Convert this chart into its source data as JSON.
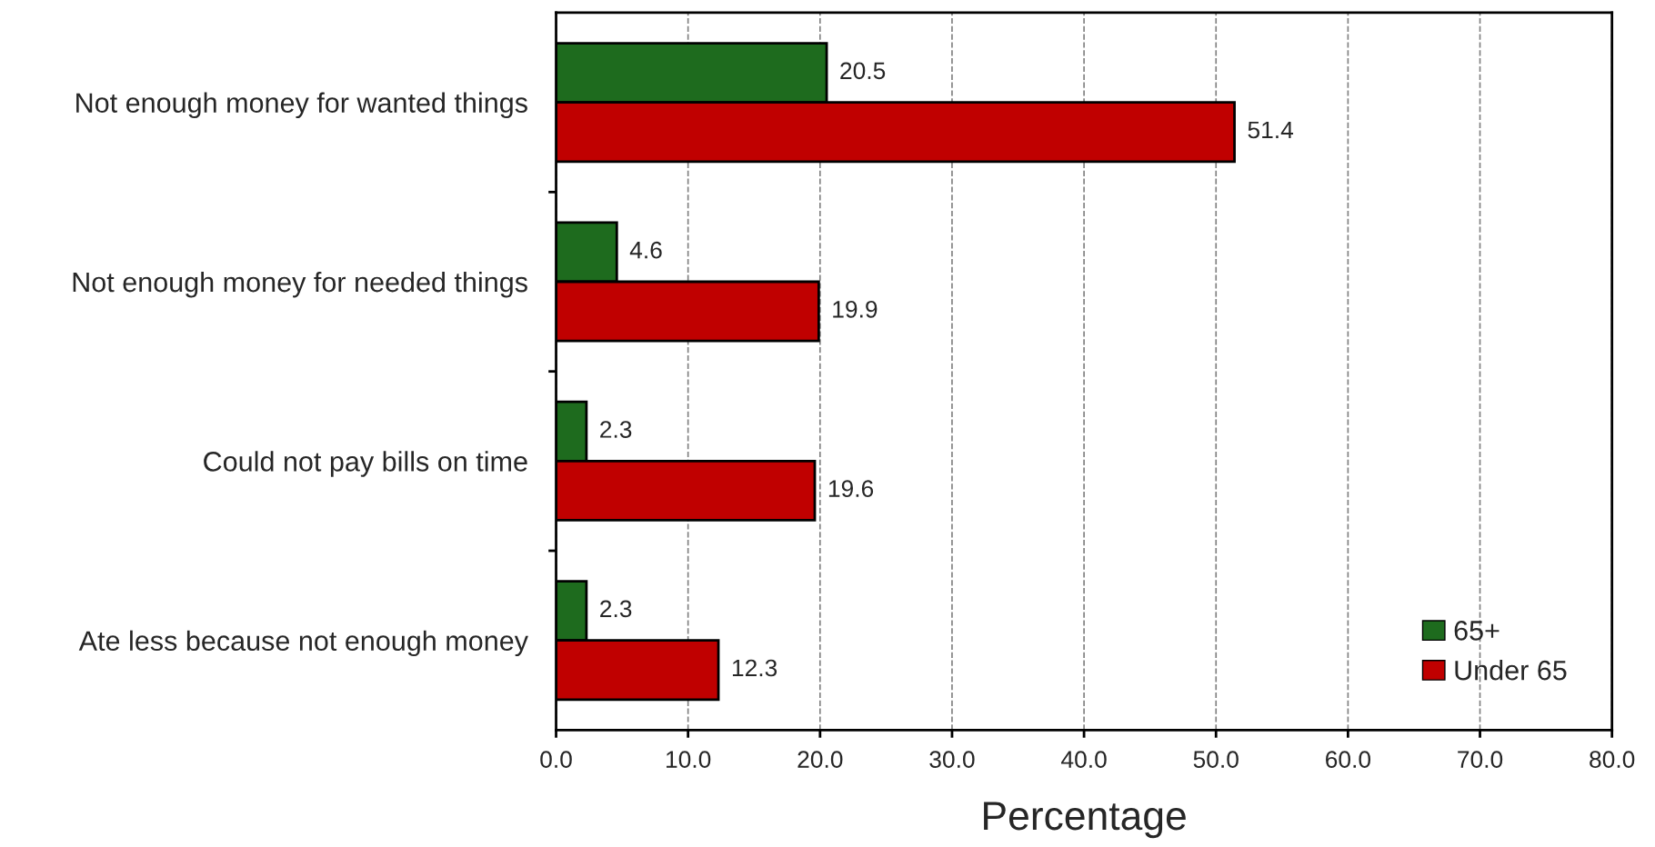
{
  "chart_data": {
    "type": "bar",
    "orientation": "horizontal",
    "xlabel": "Percentage",
    "categories": [
      "Not enough money for wanted things",
      "Not enough money for needed things",
      "Could not pay bills on time",
      "Ate less because not enough money"
    ],
    "series": [
      {
        "name": "65+",
        "color": "#1e6b1e",
        "values": [
          20.5,
          4.6,
          2.3,
          2.3
        ]
      },
      {
        "name": "Under 65",
        "color": "#c00000",
        "values": [
          51.4,
          19.9,
          19.6,
          12.3
        ]
      }
    ],
    "xlim": [
      0,
      80
    ],
    "xticks": [
      {
        "value": 0,
        "label": "0.0"
      },
      {
        "value": 10,
        "label": "10.0"
      },
      {
        "value": 20,
        "label": "20.0"
      },
      {
        "value": 30,
        "label": "30.0"
      },
      {
        "value": 40,
        "label": "40.0"
      },
      {
        "value": 50,
        "label": "50.0"
      },
      {
        "value": 60,
        "label": "60.0"
      },
      {
        "value": 70,
        "label": "70.0"
      },
      {
        "value": 80,
        "label": "80.0"
      }
    ],
    "data_labels": true,
    "grid": "x",
    "legend": "bottom right"
  }
}
